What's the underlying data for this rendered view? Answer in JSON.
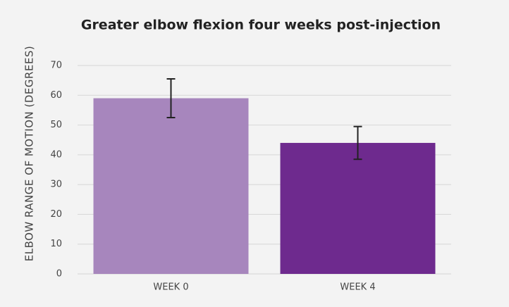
{
  "chart_data": {
    "type": "bar",
    "title": "Greater elbow flexion four weeks post-injection",
    "y_label": "ELBOW RANGE OF MOTION (DEGREES)",
    "categories": [
      "WEEK 0",
      "WEEK 4"
    ],
    "values": [
      59,
      44
    ],
    "errors": [
      6.5,
      5.5
    ],
    "colors": [
      "#a786bd",
      "#6e2a8e"
    ],
    "ylim": [
      0,
      70
    ],
    "yticks": [
      0,
      10,
      20,
      30,
      40,
      50,
      60,
      70
    ],
    "grid": true
  }
}
